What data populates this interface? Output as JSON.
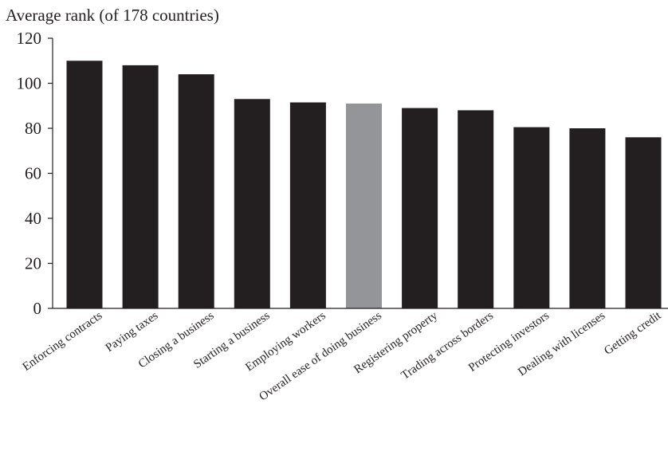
{
  "chart_data": {
    "type": "bar",
    "title": "",
    "xlabel": "",
    "ylabel": "Average rank (of 178 countries)",
    "ylim": [
      0,
      120
    ],
    "yticks": [
      "0",
      "20",
      "40",
      "60",
      "80",
      "100",
      "120"
    ],
    "grid": false,
    "categories": [
      "Enforcing contracts",
      "Paying taxes",
      "Closing a business",
      "Starting a business",
      "Employing workers",
      "Overall ease of doing business",
      "Registering property",
      "Trading across borders",
      "Protecting investors",
      "Dealing with licenses",
      "Getting credit"
    ],
    "values": [
      110,
      108,
      104,
      93,
      91.5,
      91,
      89,
      88,
      80.5,
      80,
      76
    ],
    "bar_colors": [
      "#231f20",
      "#231f20",
      "#231f20",
      "#231f20",
      "#231f20",
      "#939598",
      "#231f20",
      "#231f20",
      "#231f20",
      "#231f20",
      "#231f20"
    ]
  }
}
